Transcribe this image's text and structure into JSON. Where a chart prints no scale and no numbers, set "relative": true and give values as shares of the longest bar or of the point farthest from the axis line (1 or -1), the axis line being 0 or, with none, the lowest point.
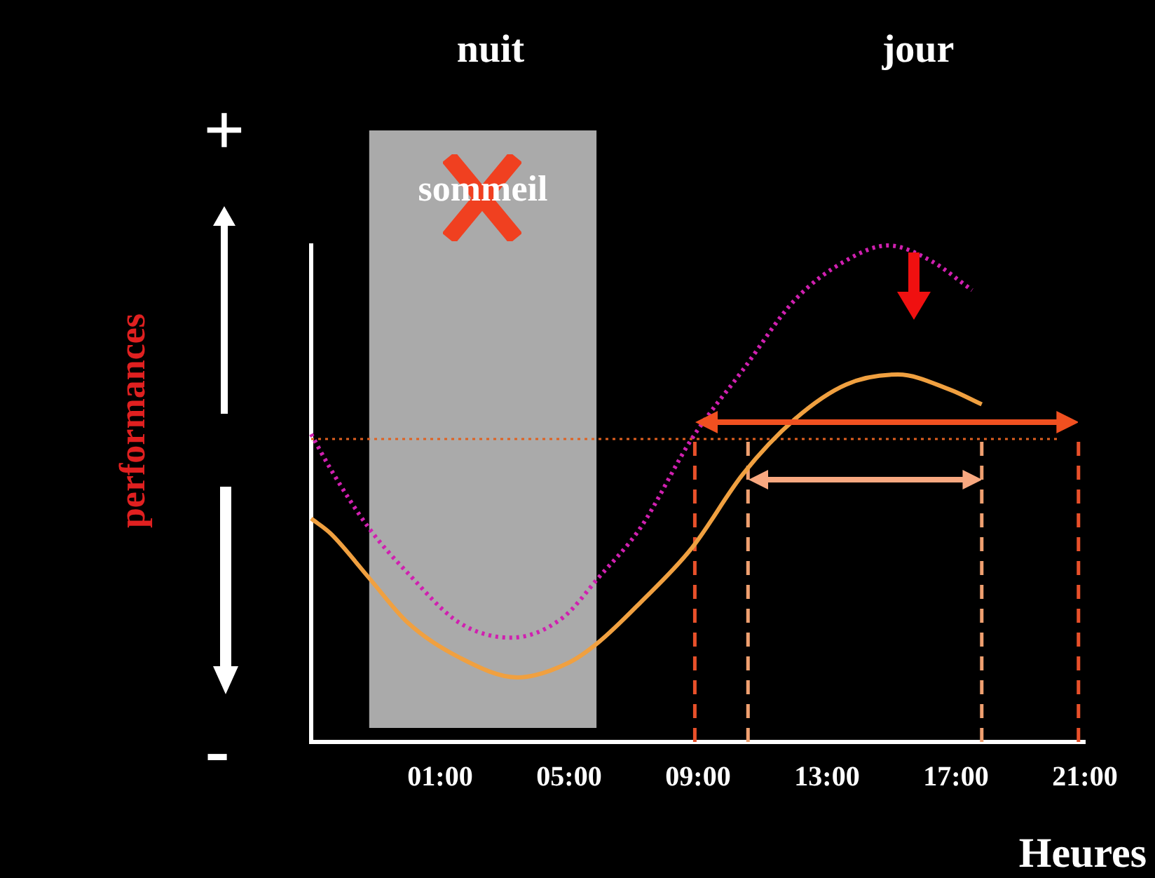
{
  "chart_data": {
    "type": "line",
    "relative": true,
    "xlabel": "Heures",
    "ylabel": "performances",
    "xlim": [
      -3,
      21
    ],
    "xticks": [
      {
        "value": 1,
        "label": "01:00"
      },
      {
        "value": 5,
        "label": "05:00"
      },
      {
        "value": 9,
        "label": "09:00"
      },
      {
        "value": 13,
        "label": "13:00"
      },
      {
        "value": 17,
        "label": "17:00"
      },
      {
        "value": 21,
        "label": "21:00"
      }
    ],
    "series": [
      {
        "color": "#d020b0",
        "line_style": "dotted",
        "x": [
          -3,
          -2.4,
          -1.2,
          0,
          1.6,
          3.2,
          4.8,
          5.9,
          7.2,
          8.8,
          10.4,
          12,
          13.6,
          14.9,
          16.2,
          17.5
        ],
        "values": [
          0.62,
          0.55,
          0.43,
          0.34,
          0.24,
          0.21,
          0.25,
          0.33,
          0.43,
          0.61,
          0.75,
          0.89,
          0.97,
          1,
          0.97,
          0.91
        ]
      },
      {
        "color": "#f0a040",
        "line_style": "solid",
        "x": [
          -3,
          -2.4,
          -1.2,
          0,
          1.6,
          3.4,
          5,
          5.9,
          7.2,
          8.8,
          10.4,
          12,
          13.6,
          15.2,
          16.8,
          17.8
        ],
        "values": [
          0.45,
          0.42,
          0.33,
          0.24,
          0.17,
          0.13,
          0.16,
          0.2,
          0.28,
          0.39,
          0.54,
          0.65,
          0.72,
          0.74,
          0.71,
          0.68
        ]
      }
    ],
    "bands": [
      {
        "axis": "x",
        "from": -1.2,
        "to": 5.85,
        "label": "sommeil",
        "color": "#aaaaaa"
      }
    ],
    "ref_lines": [
      {
        "axis": "y",
        "value": 0.61,
        "color": "#e06020",
        "line_style": "dotted"
      },
      {
        "axis": "x",
        "value": 8.9,
        "color": "#e8502a",
        "line_style": "dashed"
      },
      {
        "axis": "x",
        "value": 10.55,
        "color": "#f0a070",
        "line_style": "dashed"
      },
      {
        "axis": "x",
        "value": 17.8,
        "color": "#f0a070",
        "line_style": "dashed"
      },
      {
        "axis": "x",
        "value": 20.8,
        "color": "#e8502a",
        "line_style": "dashed"
      }
    ],
    "annotations": [
      "nuit",
      "jour",
      "+",
      "-"
    ],
    "marker": "none",
    "legend": false
  }
}
